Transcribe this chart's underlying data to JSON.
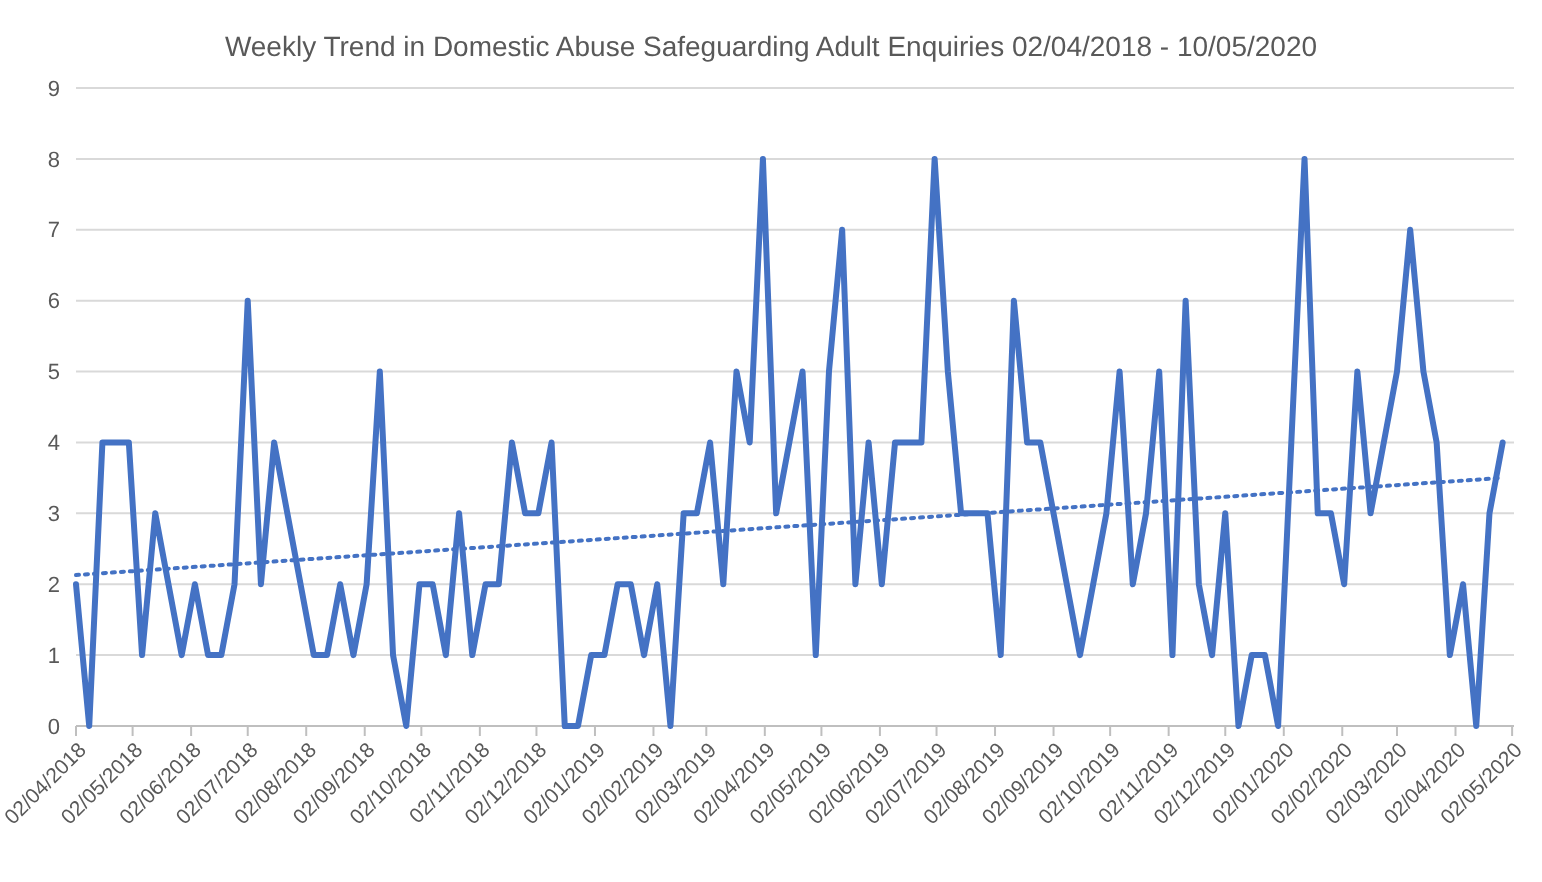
{
  "chart_data": {
    "type": "line",
    "title": "Weekly Trend in Domestic Abuse Safeguarding Adult Enquiries 02/04/2018 - 10/05/2020",
    "x": [
      "2018-04-02",
      "2018-04-09",
      "2018-04-16",
      "2018-04-23",
      "2018-04-30",
      "2018-05-07",
      "2018-05-14",
      "2018-05-21",
      "2018-05-28",
      "2018-06-04",
      "2018-06-11",
      "2018-06-18",
      "2018-06-25",
      "2018-07-02",
      "2018-07-09",
      "2018-07-16",
      "2018-07-23",
      "2018-07-30",
      "2018-08-06",
      "2018-08-13",
      "2018-08-20",
      "2018-08-27",
      "2018-09-03",
      "2018-09-10",
      "2018-09-17",
      "2018-09-24",
      "2018-10-01",
      "2018-10-08",
      "2018-10-15",
      "2018-10-22",
      "2018-10-29",
      "2018-11-05",
      "2018-11-12",
      "2018-11-19",
      "2018-11-26",
      "2018-12-03",
      "2018-12-10",
      "2018-12-17",
      "2018-12-24",
      "2018-12-31",
      "2019-01-07",
      "2019-01-14",
      "2019-01-21",
      "2019-01-28",
      "2019-02-04",
      "2019-02-11",
      "2019-02-18",
      "2019-02-25",
      "2019-03-04",
      "2019-03-11",
      "2019-03-18",
      "2019-03-25",
      "2019-04-01",
      "2019-04-08",
      "2019-04-15",
      "2019-04-22",
      "2019-04-29",
      "2019-05-06",
      "2019-05-13",
      "2019-05-20",
      "2019-05-27",
      "2019-06-03",
      "2019-06-10",
      "2019-06-17",
      "2019-06-24",
      "2019-07-01",
      "2019-07-08",
      "2019-07-15",
      "2019-07-22",
      "2019-07-29",
      "2019-08-05",
      "2019-08-12",
      "2019-08-19",
      "2019-08-26",
      "2019-09-02",
      "2019-09-09",
      "2019-09-16",
      "2019-09-23",
      "2019-09-30",
      "2019-10-07",
      "2019-10-14",
      "2019-10-21",
      "2019-10-28",
      "2019-11-04",
      "2019-11-11",
      "2019-11-18",
      "2019-11-25",
      "2019-12-02",
      "2019-12-09",
      "2019-12-16",
      "2019-12-23",
      "2019-12-30",
      "2020-01-06",
      "2020-01-13",
      "2020-01-20",
      "2020-01-27",
      "2020-02-03",
      "2020-02-10",
      "2020-02-17",
      "2020-02-24",
      "2020-03-02",
      "2020-03-09",
      "2020-03-16",
      "2020-03-23",
      "2020-03-30",
      "2020-04-06",
      "2020-04-13",
      "2020-04-20",
      "2020-04-27"
    ],
    "series": [
      {
        "color": "#4472c4",
        "line_style": "solid",
        "values": [
          2,
          0,
          4,
          4,
          4,
          1,
          3,
          2,
          1,
          2,
          1,
          1,
          2,
          6,
          2,
          4,
          3,
          2,
          1,
          1,
          2,
          1,
          2,
          5,
          1,
          0,
          2,
          2,
          1,
          3,
          1,
          2,
          2,
          4,
          3,
          3,
          4,
          0,
          0,
          1,
          1,
          2,
          2,
          1,
          2,
          0,
          3,
          3,
          4,
          2,
          5,
          4,
          8,
          3,
          4,
          5,
          1,
          5,
          7,
          2,
          4,
          2,
          4,
          4,
          4,
          8,
          5,
          3,
          3,
          3,
          1,
          6,
          4,
          4,
          3,
          2,
          1,
          2,
          3,
          5,
          2,
          3,
          5,
          1,
          6,
          2,
          1,
          3,
          0,
          1,
          1,
          0,
          4,
          8,
          3,
          3,
          2,
          5,
          3,
          4,
          5,
          7,
          5,
          4,
          1,
          2,
          0,
          3,
          4
        ]
      },
      {
        "type": "line",
        "color": "#4472c4",
        "line_style": "dotted",
        "x": [
          "2018-04-02",
          "2020-04-27"
        ],
        "values": [
          2.13,
          3.5
        ]
      }
    ],
    "xlim": [
      "2018-04-02",
      "2020-05-03"
    ],
    "xticks": [
      {
        "value": "2018-04-02",
        "label": "02/04/2018"
      },
      {
        "value": "2018-05-02",
        "label": "02/05/2018"
      },
      {
        "value": "2018-06-02",
        "label": "02/06/2018"
      },
      {
        "value": "2018-07-02",
        "label": "02/07/2018"
      },
      {
        "value": "2018-08-02",
        "label": "02/08/2018"
      },
      {
        "value": "2018-09-02",
        "label": "02/09/2018"
      },
      {
        "value": "2018-10-02",
        "label": "02/10/2018"
      },
      {
        "value": "2018-11-02",
        "label": "02/11/2018"
      },
      {
        "value": "2018-12-02",
        "label": "02/12/2018"
      },
      {
        "value": "2019-01-02",
        "label": "02/01/2019"
      },
      {
        "value": "2019-02-02",
        "label": "02/02/2019"
      },
      {
        "value": "2019-03-02",
        "label": "02/03/2019"
      },
      {
        "value": "2019-04-02",
        "label": "02/04/2019"
      },
      {
        "value": "2019-05-02",
        "label": "02/05/2019"
      },
      {
        "value": "2019-06-02",
        "label": "02/06/2019"
      },
      {
        "value": "2019-07-02",
        "label": "02/07/2019"
      },
      {
        "value": "2019-08-02",
        "label": "02/08/2019"
      },
      {
        "value": "2019-09-02",
        "label": "02/09/2019"
      },
      {
        "value": "2019-10-02",
        "label": "02/10/2019"
      },
      {
        "value": "2019-11-02",
        "label": "02/11/2019"
      },
      {
        "value": "2019-12-02",
        "label": "02/12/2019"
      },
      {
        "value": "2020-01-02",
        "label": "02/01/2020"
      },
      {
        "value": "2020-02-02",
        "label": "02/02/2020"
      },
      {
        "value": "2020-03-02",
        "label": "02/03/2020"
      },
      {
        "value": "2020-04-02",
        "label": "02/04/2020"
      },
      {
        "value": "2020-05-02",
        "label": "02/05/2020"
      }
    ],
    "ylim": [
      0,
      9
    ],
    "yticks": [
      0,
      1,
      2,
      3,
      4,
      5,
      6,
      7,
      8,
      9
    ],
    "grid": "y",
    "marker": "none"
  }
}
